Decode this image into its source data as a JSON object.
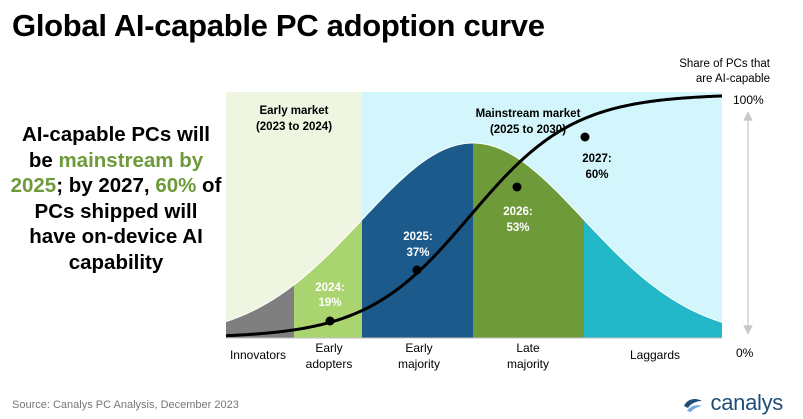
{
  "title": "Global AI-capable PC adoption curve",
  "headline": {
    "p1": "AI-capable PCs will be ",
    "p2": "mainstream by 2025",
    "p3": "; by 2027, ",
    "p4": "60%",
    "p5": " of PCs shipped will have on-device AI capability"
  },
  "source": "Source: Canalys PC Analysis, December 2023",
  "brand": "canalys",
  "colors": {
    "early_market_bg": "#eef5e0",
    "mainstream_bg": "#d2f6fb",
    "innovators": "#7f7f7f",
    "early_adopters": "#a9d46f",
    "early_majority": "#1b5a8a",
    "late_majority": "#6e9a3a",
    "laggards": "#23b8c8",
    "curve": "#000000",
    "brand": "#1f4e79"
  },
  "chart_data": {
    "type": "area",
    "title": "Global AI-capable PC adoption curve",
    "phase_labels": {
      "early_market": [
        "Early market",
        "(2023 to 2024)"
      ],
      "mainstream_market": [
        "Mainstream market",
        "(2025 to 2030)"
      ]
    },
    "segments": [
      {
        "id": "innovators",
        "label": [
          "Innovators"
        ]
      },
      {
        "id": "early_adopters",
        "label": [
          "Early",
          "adopters"
        ]
      },
      {
        "id": "early_majority",
        "label": [
          "Early",
          "majority"
        ]
      },
      {
        "id": "late_majority",
        "label": [
          "Late",
          "majority"
        ]
      },
      {
        "id": "laggards",
        "label": [
          "Laggards"
        ]
      }
    ],
    "series": [
      {
        "name": "Share of PCs that are AI-capable",
        "type": "line",
        "ylim": [
          0,
          100
        ]
      }
    ],
    "points": [
      {
        "year": "2024",
        "value": 19,
        "label": [
          "2024:",
          "19%"
        ]
      },
      {
        "year": "2025",
        "value": 37,
        "label": [
          "2025:",
          "37%"
        ]
      },
      {
        "year": "2026",
        "value": 53,
        "label": [
          "2026:",
          "53%"
        ]
      },
      {
        "year": "2027",
        "value": 60,
        "label": [
          "2027:",
          "60%"
        ]
      }
    ],
    "right_axis": {
      "title": [
        "Share of PCs that",
        "are AI-capable"
      ],
      "top_label": "100%",
      "bottom_label": "0%"
    }
  }
}
